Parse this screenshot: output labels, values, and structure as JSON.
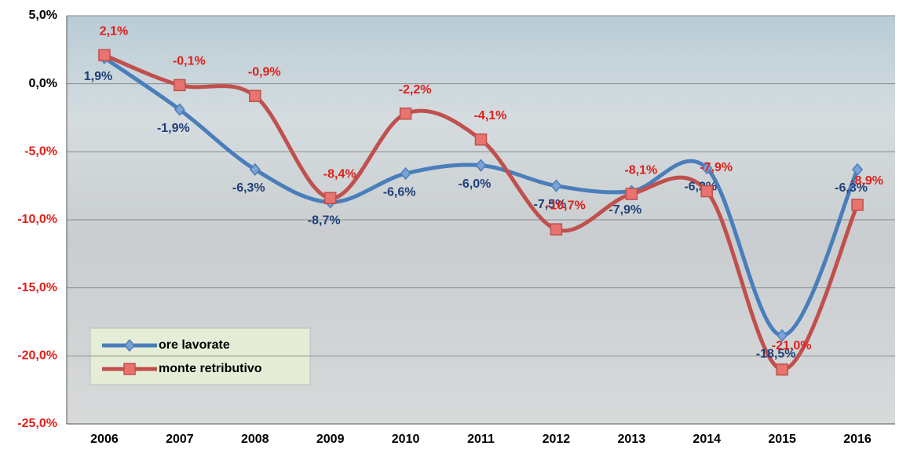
{
  "chart_data": {
    "type": "line",
    "categories": [
      "2006",
      "2007",
      "2008",
      "2009",
      "2010",
      "2011",
      "2012",
      "2013",
      "2014",
      "2015",
      "2016"
    ],
    "series": [
      {
        "name": "ore lavorate",
        "color": "#4a7ebb",
        "label_color": "#1f3f7a",
        "marker": "diamond",
        "values": [
          1.9,
          -1.9,
          -6.3,
          -8.7,
          -6.6,
          -6.0,
          -7.5,
          -7.9,
          -6.2,
          -18.5,
          -6.3
        ],
        "value_labels": [
          "1,9%",
          "-1,9%",
          "-6,3%",
          "-8,7%",
          "-6,6%",
          "-6,0%",
          "-7,5%",
          "-7,9%",
          "-6,2%",
          "-18,5%",
          "-6,3%"
        ]
      },
      {
        "name": "monte retributivo",
        "color": "#c0504d",
        "label_color": "#e0201b",
        "marker": "square",
        "values": [
          2.1,
          -0.1,
          -0.9,
          -8.4,
          -2.2,
          -4.1,
          -10.7,
          -8.1,
          -7.9,
          -21.0,
          -8.9
        ],
        "value_labels": [
          "2,1%",
          "-0,1%",
          "-0,9%",
          "-8,4%",
          "-2,2%",
          "-4,1%",
          "-10,7%",
          "-8,1%",
          "-7,9%",
          "-21,0%",
          "-8,9%"
        ]
      }
    ],
    "ylim": [
      -25,
      5
    ],
    "yticks": [
      {
        "value": -25,
        "label": "-25,0%"
      },
      {
        "value": -20,
        "label": "-20,0%"
      },
      {
        "value": -15,
        "label": "-15,0%"
      },
      {
        "value": -10,
        "label": "-10,0%"
      },
      {
        "value": -5,
        "label": "-5,0%"
      },
      {
        "value": 0,
        "label": "0,0%"
      },
      {
        "value": 5,
        "label": "5,0%"
      }
    ],
    "grid": true,
    "legend": "lower left"
  }
}
